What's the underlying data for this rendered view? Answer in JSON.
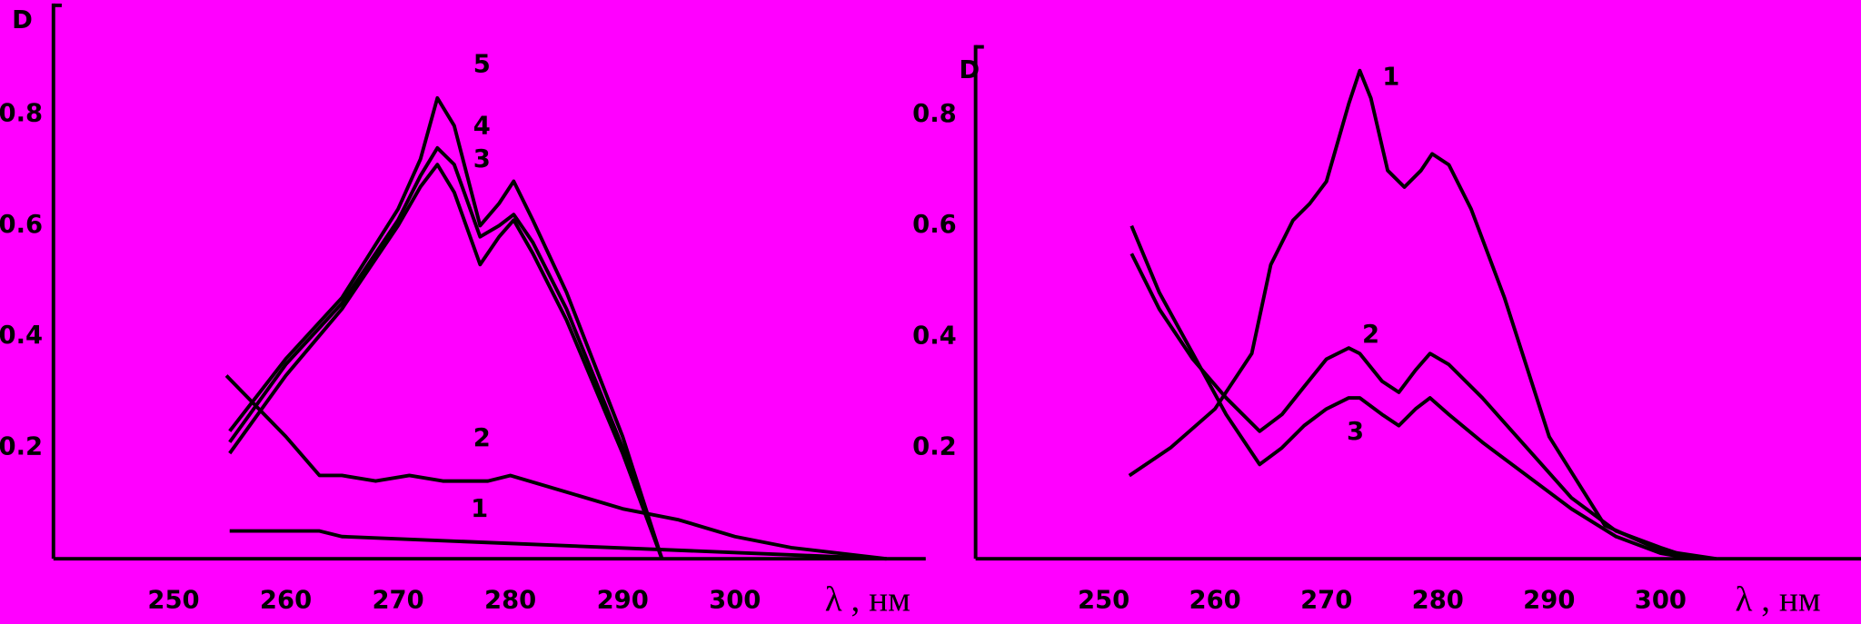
{
  "chart_data": [
    {
      "type": "line",
      "ylabel": "D",
      "xlabel": "λ , нм",
      "xlim": [
        239.3,
        317
      ],
      "ylim": [
        0,
        1.0
      ],
      "xticks": [
        250,
        260,
        270,
        280,
        290,
        300
      ],
      "yticks": [
        0.2,
        0.4,
        0.6,
        0.8
      ],
      "series": [
        {
          "name": "1",
          "color": "#000000",
          "x": [
            255,
            263,
            265,
            313.5
          ],
          "values": [
            0.05,
            0.05,
            0.04,
            0
          ]
        },
        {
          "name": "2",
          "color": "#000000",
          "x": [
            254.7,
            260,
            263,
            265,
            268,
            271,
            274,
            278,
            280,
            285,
            290,
            295,
            300,
            305,
            313.5
          ],
          "values": [
            0.33,
            0.22,
            0.15,
            0.15,
            0.14,
            0.15,
            0.14,
            0.14,
            0.15,
            0.12,
            0.09,
            0.07,
            0.04,
            0.02,
            0
          ]
        },
        {
          "name": "3",
          "color": "#000000",
          "x": [
            255,
            260,
            265,
            270,
            272,
            273.5,
            275,
            277.3,
            279,
            280.3,
            282,
            285,
            290,
            293.5
          ],
          "values": [
            0.19,
            0.33,
            0.45,
            0.6,
            0.67,
            0.71,
            0.66,
            0.53,
            0.58,
            0.61,
            0.55,
            0.43,
            0.19,
            0
          ]
        },
        {
          "name": "4",
          "color": "#000000",
          "x": [
            255,
            260,
            265,
            270,
            272,
            273.5,
            275,
            277.3,
            279,
            280.3,
            282,
            285,
            290,
            293.5
          ],
          "values": [
            0.21,
            0.35,
            0.46,
            0.61,
            0.69,
            0.74,
            0.71,
            0.58,
            0.6,
            0.62,
            0.57,
            0.45,
            0.2,
            0
          ]
        },
        {
          "name": "5",
          "color": "#000000",
          "x": [
            255,
            260,
            265,
            270,
            272,
            273.5,
            275,
            277.3,
            279,
            280.3,
            282,
            285,
            290,
            293.5
          ],
          "values": [
            0.23,
            0.36,
            0.47,
            0.63,
            0.72,
            0.83,
            0.78,
            0.6,
            0.64,
            0.68,
            0.61,
            0.48,
            0.22,
            0
          ]
        }
      ]
    },
    {
      "type": "line",
      "ylabel": "D",
      "xlabel": "λ , нм",
      "xlim": [
        238.5,
        318
      ],
      "ylim": [
        0,
        0.926
      ],
      "xticks": [
        250,
        260,
        270,
        280,
        290,
        300
      ],
      "yticks": [
        0.2,
        0.4,
        0.6,
        0.8
      ],
      "series": [
        {
          "name": "1",
          "color": "#000000",
          "x": [
            252.3,
            256,
            260,
            263.3,
            265,
            267,
            268.5,
            270,
            272,
            273,
            274,
            275.5,
            277,
            278.5,
            279.5,
            281,
            283,
            286,
            290,
            295,
            300,
            305
          ],
          "values": [
            0.15,
            0.2,
            0.27,
            0.37,
            0.53,
            0.61,
            0.64,
            0.68,
            0.82,
            0.88,
            0.83,
            0.7,
            0.67,
            0.7,
            0.73,
            0.71,
            0.63,
            0.47,
            0.22,
            0.06,
            0.015,
            0
          ]
        },
        {
          "name": "2",
          "color": "#000000",
          "x": [
            252.5,
            255,
            258,
            261,
            264,
            266,
            268,
            270,
            272,
            273,
            275,
            276.5,
            278,
            279.3,
            281,
            284,
            288,
            292,
            296,
            300,
            303
          ],
          "values": [
            0.55,
            0.45,
            0.36,
            0.29,
            0.23,
            0.26,
            0.31,
            0.36,
            0.38,
            0.37,
            0.32,
            0.3,
            0.34,
            0.37,
            0.35,
            0.29,
            0.2,
            0.11,
            0.05,
            0.02,
            0
          ]
        },
        {
          "name": "3",
          "color": "#000000",
          "x": [
            252.5,
            255,
            258,
            261,
            264,
            266,
            268,
            270,
            272,
            273,
            275,
            276.5,
            278,
            279.3,
            281,
            284,
            288,
            292,
            296,
            300,
            303
          ],
          "values": [
            0.6,
            0.48,
            0.37,
            0.26,
            0.17,
            0.2,
            0.24,
            0.27,
            0.29,
            0.29,
            0.26,
            0.24,
            0.27,
            0.29,
            0.26,
            0.21,
            0.15,
            0.09,
            0.04,
            0.01,
            0
          ]
        }
      ]
    }
  ]
}
